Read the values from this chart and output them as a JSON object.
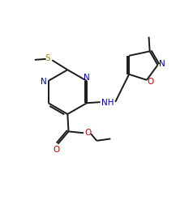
{
  "bg_color": "#ffffff",
  "bond_color": "#1a1a1a",
  "n_color": "#0000cc",
  "o_color": "#cc0000",
  "s_color": "#aa8800",
  "lw": 1.4,
  "fs": 7.5,
  "xlim": [
    0,
    10
  ],
  "ylim": [
    0,
    10.6
  ]
}
